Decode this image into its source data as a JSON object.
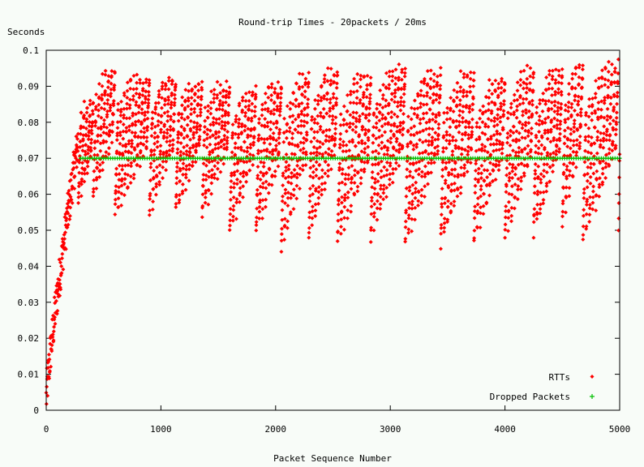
{
  "chart_data": {
    "type": "scatter",
    "title": "Round-trip Times - 20packets / 20ms",
    "xlabel": "Packet Sequence Number",
    "ylabel": "Seconds",
    "xlim": [
      0,
      5000
    ],
    "ylim": [
      0,
      0.1
    ],
    "x_ticks": [
      0,
      1000,
      2000,
      3000,
      4000,
      5000
    ],
    "x_tick_labels": [
      "0",
      "1000",
      "2000",
      "3000",
      "4000",
      "5000"
    ],
    "y_ticks": [
      0,
      0.01,
      0.02,
      0.03,
      0.04,
      0.05,
      0.06,
      0.07,
      0.08,
      0.09,
      0.1
    ],
    "y_tick_labels": [
      "0",
      "0.01",
      "0.02",
      "0.03",
      "0.04",
      "0.05",
      "0.06",
      "0.07",
      "0.08",
      "0.09",
      "0.1"
    ],
    "grid": false,
    "legend_position": "bottom-right",
    "series": [
      {
        "name": "RTTs",
        "marker": "diamond",
        "color": "#ff0000",
        "ramp_up": {
          "x_start": 0,
          "x_end": 280,
          "y_start": 0.003,
          "y_end": 0.075
        },
        "sawtooth_cycles": [
          {
            "x_start": 280,
            "x_end": 410,
            "y_min": 0.058,
            "y_max": 0.085
          },
          {
            "x_start": 410,
            "x_end": 600,
            "y_min": 0.058,
            "y_max": 0.095
          },
          {
            "x_start": 600,
            "x_end": 900,
            "y_min": 0.054,
            "y_max": 0.092
          },
          {
            "x_start": 900,
            "x_end": 1130,
            "y_min": 0.054,
            "y_max": 0.093
          },
          {
            "x_start": 1130,
            "x_end": 1360,
            "y_min": 0.055,
            "y_max": 0.092
          },
          {
            "x_start": 1360,
            "x_end": 1600,
            "y_min": 0.054,
            "y_max": 0.091
          },
          {
            "x_start": 1600,
            "x_end": 1830,
            "y_min": 0.049,
            "y_max": 0.09
          },
          {
            "x_start": 1830,
            "x_end": 2050,
            "y_min": 0.049,
            "y_max": 0.091
          },
          {
            "x_start": 2050,
            "x_end": 2290,
            "y_min": 0.045,
            "y_max": 0.094
          },
          {
            "x_start": 2290,
            "x_end": 2540,
            "y_min": 0.048,
            "y_max": 0.095
          },
          {
            "x_start": 2540,
            "x_end": 2830,
            "y_min": 0.046,
            "y_max": 0.093
          },
          {
            "x_start": 2830,
            "x_end": 3130,
            "y_min": 0.048,
            "y_max": 0.095
          },
          {
            "x_start": 3130,
            "x_end": 3440,
            "y_min": 0.046,
            "y_max": 0.095
          },
          {
            "x_start": 3440,
            "x_end": 3730,
            "y_min": 0.046,
            "y_max": 0.093
          },
          {
            "x_start": 3730,
            "x_end": 4000,
            "y_min": 0.047,
            "y_max": 0.093
          },
          {
            "x_start": 4000,
            "x_end": 4250,
            "y_min": 0.047,
            "y_max": 0.095
          },
          {
            "x_start": 4250,
            "x_end": 4500,
            "y_min": 0.049,
            "y_max": 0.095
          },
          {
            "x_start": 4500,
            "x_end": 4680,
            "y_min": 0.052,
            "y_max": 0.097
          },
          {
            "x_start": 4680,
            "x_end": 4990,
            "y_min": 0.047,
            "y_max": 0.097
          },
          {
            "x_start": 4990,
            "x_end": 5000,
            "y_min": 0.05,
            "y_max": 0.073
          }
        ]
      },
      {
        "name": "Dropped Packets",
        "marker": "plus",
        "color": "#00c000",
        "x_start": 300,
        "x_end": 5000,
        "x_step": 20,
        "y": 0.07
      }
    ]
  }
}
